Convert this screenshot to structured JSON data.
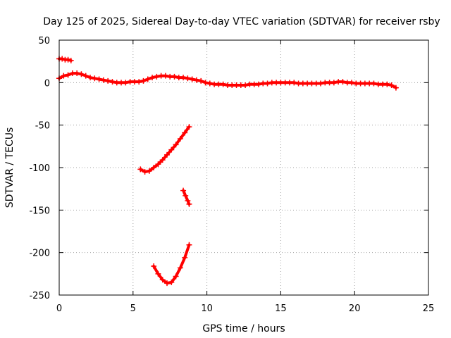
{
  "chart_data": {
    "type": "scatter",
    "title": "Day 125 of 2025, Sidereal Day-to-day VTEC variation (SDTVAR) for receiver rsby",
    "xlabel": "GPS time / hours",
    "ylabel": "SDTVAR / TECUs",
    "xlim": [
      0,
      25
    ],
    "ylim": [
      -250,
      50
    ],
    "xticks": [
      0,
      5,
      10,
      15,
      20,
      25
    ],
    "yticks": [
      50,
      0,
      -50,
      -100,
      -150,
      -200,
      -250
    ],
    "grid": true,
    "marker": "plus",
    "color": "#ff0000",
    "series": [
      {
        "name": "main",
        "points": [
          [
            0.0,
            5
          ],
          [
            0.3,
            8
          ],
          [
            0.6,
            9
          ],
          [
            0.9,
            11
          ],
          [
            1.2,
            11
          ],
          [
            1.5,
            10
          ],
          [
            1.8,
            8
          ],
          [
            2.1,
            6
          ],
          [
            2.4,
            5
          ],
          [
            2.7,
            4
          ],
          [
            3.0,
            3
          ],
          [
            3.3,
            2
          ],
          [
            3.6,
            1
          ],
          [
            3.9,
            0
          ],
          [
            4.2,
            0
          ],
          [
            4.5,
            0
          ],
          [
            4.8,
            1
          ],
          [
            5.1,
            1
          ],
          [
            5.4,
            1
          ],
          [
            5.7,
            2
          ],
          [
            6.0,
            4
          ],
          [
            6.3,
            6
          ],
          [
            6.6,
            7
          ],
          [
            6.9,
            8
          ],
          [
            7.2,
            8
          ],
          [
            7.5,
            7
          ],
          [
            7.8,
            7
          ],
          [
            8.1,
            6
          ],
          [
            8.4,
            6
          ],
          [
            8.7,
            5
          ],
          [
            9.0,
            4
          ],
          [
            9.3,
            3
          ],
          [
            9.6,
            2
          ],
          [
            9.9,
            0
          ],
          [
            10.2,
            -1
          ],
          [
            10.5,
            -2
          ],
          [
            10.8,
            -2
          ],
          [
            11.1,
            -2
          ],
          [
            11.4,
            -3
          ],
          [
            11.7,
            -3
          ],
          [
            12.0,
            -3
          ],
          [
            12.3,
            -3
          ],
          [
            12.6,
            -3
          ],
          [
            12.9,
            -2
          ],
          [
            13.2,
            -2
          ],
          [
            13.5,
            -2
          ],
          [
            13.8,
            -1
          ],
          [
            14.1,
            -1
          ],
          [
            14.4,
            0
          ],
          [
            14.7,
            0
          ],
          [
            15.0,
            0
          ],
          [
            15.3,
            0
          ],
          [
            15.6,
            0
          ],
          [
            15.9,
            0
          ],
          [
            16.2,
            -1
          ],
          [
            16.5,
            -1
          ],
          [
            16.8,
            -1
          ],
          [
            17.1,
            -1
          ],
          [
            17.4,
            -1
          ],
          [
            17.7,
            -1
          ],
          [
            18.0,
            0
          ],
          [
            18.3,
            0
          ],
          [
            18.6,
            0
          ],
          [
            18.9,
            1
          ],
          [
            19.2,
            1
          ],
          [
            19.5,
            0
          ],
          [
            19.8,
            0
          ],
          [
            20.1,
            -1
          ],
          [
            20.4,
            -1
          ],
          [
            20.7,
            -1
          ],
          [
            21.0,
            -1
          ],
          [
            21.3,
            -1
          ],
          [
            21.6,
            -2
          ],
          [
            21.9,
            -2
          ],
          [
            22.2,
            -2
          ],
          [
            22.5,
            -3
          ],
          [
            22.8,
            -6
          ]
        ]
      },
      {
        "name": "early-arc",
        "points": [
          [
            0.0,
            28
          ],
          [
            0.2,
            28
          ],
          [
            0.4,
            27
          ],
          [
            0.6,
            27
          ],
          [
            0.8,
            26
          ]
        ]
      },
      {
        "name": "arc-1",
        "points": [
          [
            5.5,
            -102
          ],
          [
            5.8,
            -105
          ],
          [
            6.1,
            -104
          ],
          [
            6.4,
            -100
          ],
          [
            6.7,
            -96
          ],
          [
            7.0,
            -91
          ],
          [
            7.3,
            -85
          ],
          [
            7.6,
            -79
          ],
          [
            7.9,
            -73
          ],
          [
            8.2,
            -66
          ],
          [
            8.5,
            -59
          ],
          [
            8.8,
            -52
          ]
        ]
      },
      {
        "name": "arc-2",
        "points": [
          [
            8.4,
            -127
          ],
          [
            8.55,
            -133
          ],
          [
            8.7,
            -139
          ],
          [
            8.8,
            -143
          ]
        ]
      },
      {
        "name": "arc-3",
        "points": [
          [
            6.4,
            -216
          ],
          [
            6.7,
            -225
          ],
          [
            7.0,
            -232
          ],
          [
            7.3,
            -236
          ],
          [
            7.6,
            -235
          ],
          [
            7.9,
            -228
          ],
          [
            8.2,
            -218
          ],
          [
            8.5,
            -206
          ],
          [
            8.8,
            -191
          ]
        ]
      }
    ]
  }
}
